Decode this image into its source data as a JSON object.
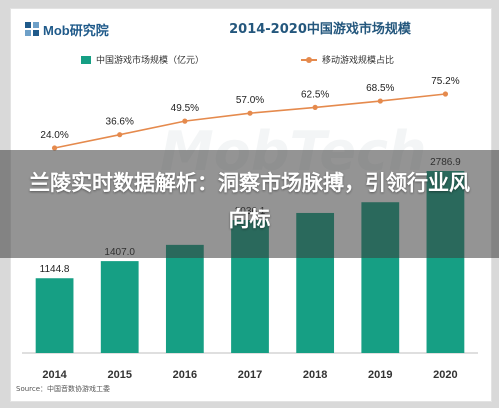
{
  "brand": {
    "logo_text": "Mob研究院"
  },
  "headline": "兰陵实时数据解析：洞察市场脉搏，引领行业风向标",
  "source": "Source：中国音数协游戏工委",
  "colors": {
    "bar": "#169f84",
    "line": "#e58a4d",
    "title": "#24577d"
  },
  "chart_data": {
    "type": "bar",
    "title": "2014-2020中国游戏市场规模",
    "categories": [
      "2014",
      "2015",
      "2016",
      "2017",
      "2018",
      "2019",
      "2020"
    ],
    "series": [
      {
        "name": "中国游戏市场规模（亿元）",
        "type": "bar",
        "values": [
          1144.8,
          1407.0,
          1655.7,
          2036.1,
          2144.4,
          2308.8,
          2786.9
        ],
        "labels": [
          "1144.8",
          "1407.0",
          "",
          "2036.1",
          "",
          "",
          "2786.9"
        ]
      },
      {
        "name": "移动游戏规模占比",
        "type": "line",
        "values": [
          24.0,
          36.6,
          49.5,
          57.0,
          62.5,
          68.5,
          75.2
        ],
        "labels": [
          "24.0%",
          "36.6%",
          "49.5%",
          "57.0%",
          "62.5%",
          "68.5%",
          "75.2%"
        ]
      }
    ],
    "bar_ylim": [
      0,
      3000
    ],
    "line_ylim": [
      0,
      100
    ],
    "grid": false,
    "legend_position": "top"
  }
}
